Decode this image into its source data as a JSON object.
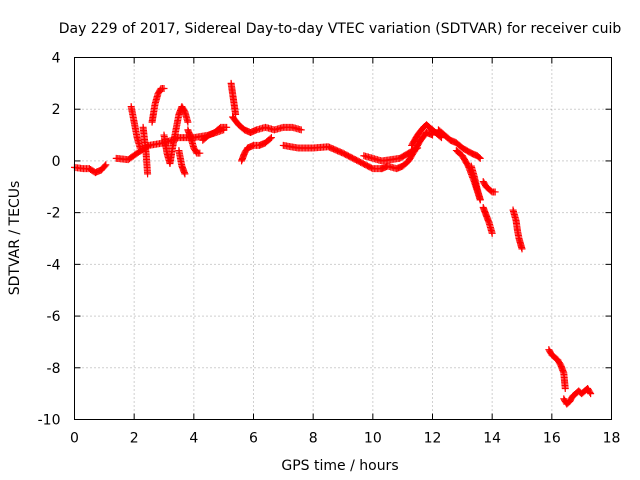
{
  "chart_data": {
    "type": "scatter",
    "title": "Day 229 of 2017, Sidereal Day-to-day VTEC variation (SDTVAR) for receiver cuib",
    "xlabel": "GPS time / hours",
    "ylabel": "SDTVAR / TECUs",
    "xlim": [
      0,
      18
    ],
    "ylim": [
      -10,
      4
    ],
    "xticks": [
      "0",
      "2",
      "4",
      "6",
      "8",
      "10",
      "12",
      "14",
      "16",
      "18"
    ],
    "yticks": [
      "4",
      "2",
      "0",
      "-2",
      "-4",
      "-6",
      "-8",
      "-10"
    ],
    "grid": true,
    "marker": "plus",
    "color": "#ff0000",
    "segments": [
      {
        "x": [
          0.0,
          0.3,
          0.5,
          0.7,
          0.9,
          1.05
        ],
        "y": [
          -0.25,
          -0.3,
          -0.3,
          -0.45,
          -0.35,
          -0.15
        ]
      },
      {
        "x": [
          1.4,
          1.8,
          2.1,
          2.5,
          3.0,
          3.5,
          4.0,
          4.5,
          5.0
        ],
        "y": [
          0.1,
          0.05,
          0.3,
          0.6,
          0.7,
          0.9,
          0.9,
          1.0,
          1.2
        ]
      },
      {
        "x": [
          1.9,
          2.0,
          2.1,
          2.2
        ],
        "y": [
          2.1,
          1.5,
          0.9,
          0.5
        ]
      },
      {
        "x": [
          2.3,
          2.4,
          2.45
        ],
        "y": [
          1.3,
          0.3,
          -0.5
        ]
      },
      {
        "x": [
          2.6,
          2.7,
          2.8,
          2.9,
          3.0
        ],
        "y": [
          1.5,
          2.2,
          2.6,
          2.8,
          2.8
        ]
      },
      {
        "x": [
          3.0,
          3.1,
          3.2,
          3.3
        ],
        "y": [
          1.0,
          0.3,
          -0.1,
          0.6
        ]
      },
      {
        "x": [
          3.3,
          3.4,
          3.5,
          3.6,
          3.7,
          3.8
        ],
        "y": [
          0.6,
          1.2,
          1.8,
          2.1,
          1.9,
          1.5
        ]
      },
      {
        "x": [
          3.5,
          3.6,
          3.7
        ],
        "y": [
          0.4,
          -0.2,
          -0.5
        ]
      },
      {
        "x": [
          3.8,
          3.9,
          4.0,
          4.1,
          4.2
        ],
        "y": [
          1.2,
          0.9,
          0.5,
          0.3,
          0.3
        ]
      },
      {
        "x": [
          4.3,
          4.5,
          4.7,
          4.9,
          5.1
        ],
        "y": [
          0.8,
          1.0,
          1.1,
          1.3,
          1.3
        ]
      },
      {
        "x": [
          5.25,
          5.3,
          5.35,
          5.4
        ],
        "y": [
          3.0,
          2.6,
          2.2,
          1.8
        ]
      },
      {
        "x": [
          5.3,
          5.5,
          5.7,
          5.9,
          6.1,
          6.4,
          6.7,
          7.0,
          7.3,
          7.6
        ],
        "y": [
          1.7,
          1.4,
          1.2,
          1.1,
          1.2,
          1.3,
          1.2,
          1.3,
          1.3,
          1.2
        ]
      },
      {
        "x": [
          5.6,
          5.7,
          5.8,
          6.0,
          6.2,
          6.4,
          6.6
        ],
        "y": [
          0.0,
          0.3,
          0.5,
          0.6,
          0.6,
          0.7,
          0.9
        ]
      },
      {
        "x": [
          7.0,
          7.5,
          8.0,
          8.5,
          9.0,
          9.5,
          10.0,
          10.3
        ],
        "y": [
          0.6,
          0.5,
          0.5,
          0.55,
          0.3,
          0.0,
          -0.3,
          -0.3
        ]
      },
      {
        "x": [
          9.7,
          10.0,
          10.3,
          10.6,
          10.9,
          11.2,
          11.5
        ],
        "y": [
          0.2,
          0.1,
          0.0,
          0.05,
          0.1,
          0.3,
          0.5
        ]
      },
      {
        "x": [
          10.3,
          10.5,
          10.8,
          11.0,
          11.2,
          11.4,
          11.6,
          11.8,
          12.0
        ],
        "y": [
          -0.3,
          -0.2,
          -0.3,
          -0.2,
          0.0,
          0.4,
          0.8,
          1.1,
          1.0
        ]
      },
      {
        "x": [
          11.3,
          11.5,
          11.7,
          11.8,
          11.9,
          12.1,
          12.3
        ],
        "y": [
          0.6,
          1.0,
          1.3,
          1.4,
          1.3,
          1.1,
          0.9
        ]
      },
      {
        "x": [
          12.2,
          12.4,
          12.6,
          12.8,
          13.0,
          13.3,
          13.5,
          13.6
        ],
        "y": [
          1.2,
          1.0,
          0.8,
          0.7,
          0.5,
          0.3,
          0.2,
          0.1
        ]
      },
      {
        "x": [
          12.8,
          13.0,
          13.2,
          13.4,
          13.6
        ],
        "y": [
          0.4,
          0.2,
          -0.2,
          -0.8,
          -1.5
        ]
      },
      {
        "x": [
          13.3,
          13.4,
          13.5,
          13.6
        ],
        "y": [
          -0.2,
          -0.6,
          -1.1,
          -1.5
        ]
      },
      {
        "x": [
          13.7,
          13.8,
          13.9,
          14.0,
          14.1
        ],
        "y": [
          -0.8,
          -1.0,
          -1.1,
          -1.2,
          -1.2
        ]
      },
      {
        "x": [
          13.7,
          13.8,
          13.9,
          14.0
        ],
        "y": [
          -1.8,
          -2.1,
          -2.4,
          -2.8
        ]
      },
      {
        "x": [
          14.7,
          14.8,
          14.85,
          14.9,
          14.95,
          15.0
        ],
        "y": [
          -1.9,
          -2.3,
          -2.7,
          -3.0,
          -3.2,
          -3.4
        ]
      },
      {
        "x": [
          15.9,
          16.0,
          16.1,
          16.2,
          16.3,
          16.4,
          16.45
        ],
        "y": [
          -7.3,
          -7.5,
          -7.6,
          -7.7,
          -7.9,
          -8.2,
          -8.8
        ]
      },
      {
        "x": [
          16.4,
          16.5,
          16.6,
          16.7,
          16.8,
          16.9,
          17.0,
          17.1,
          17.2,
          17.3
        ],
        "y": [
          -9.2,
          -9.4,
          -9.3,
          -9.1,
          -9.0,
          -8.9,
          -9.0,
          -8.9,
          -8.8,
          -9.0
        ]
      }
    ]
  }
}
